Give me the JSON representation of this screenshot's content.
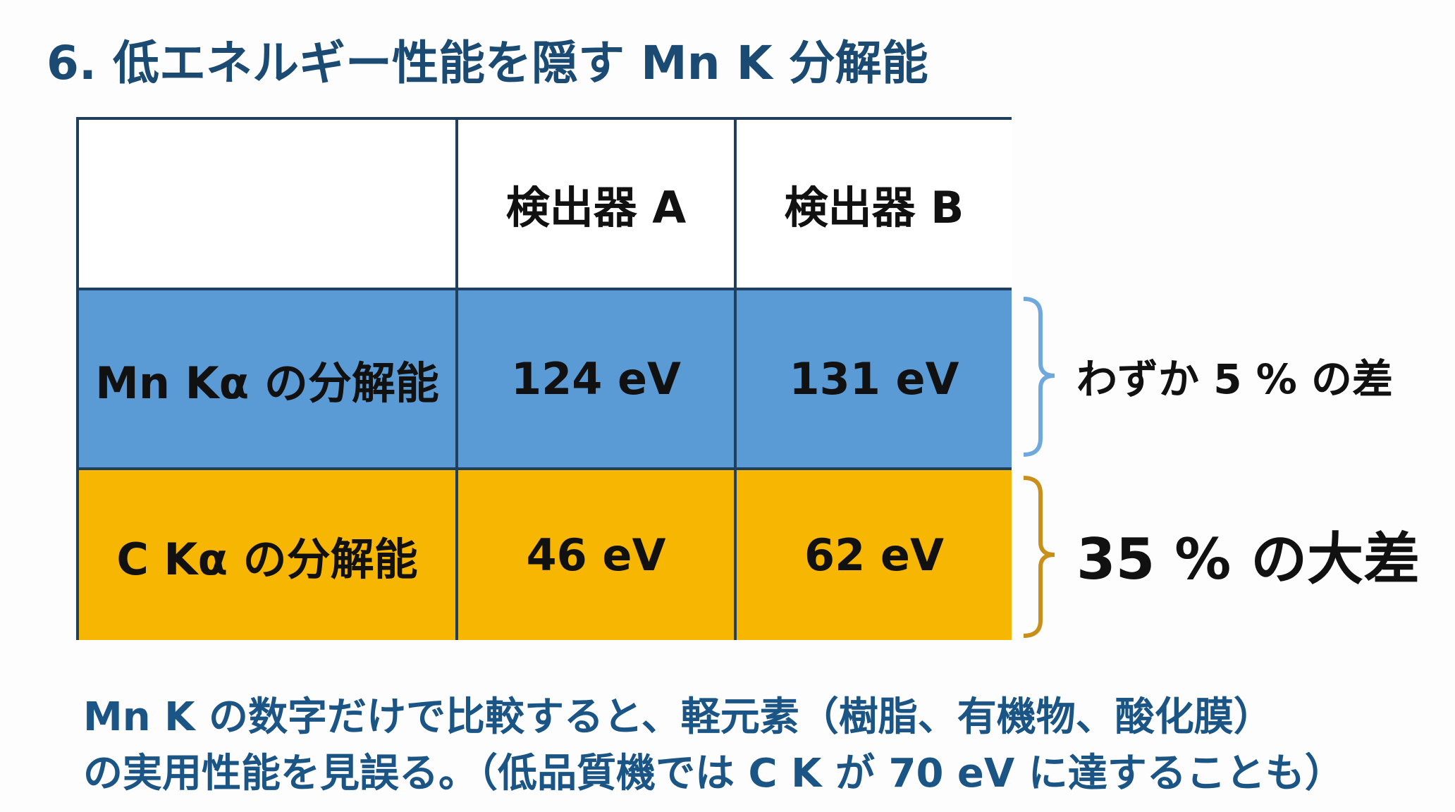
{
  "title": "6. 低エネルギー性能を隠す Mn K 分解能",
  "table": {
    "header": [
      "",
      "検出器 A",
      "検出器 B"
    ],
    "rows": [
      [
        "Mn Kα の分解能",
        "124 eV",
        "131 eV"
      ],
      [
        "C Kα の分解能",
        "46 eV",
        "62 eV"
      ]
    ]
  },
  "annotations": [
    "わずか 5 % の差",
    "35 % の大差"
  ],
  "footer": [
    "Mn K の数字だけで比較すると、軽元素（樹脂、有機物、酸化膜）",
    "の実用性能を見誤る。（低品質機では C K が 70 eV に達することも）"
  ]
}
